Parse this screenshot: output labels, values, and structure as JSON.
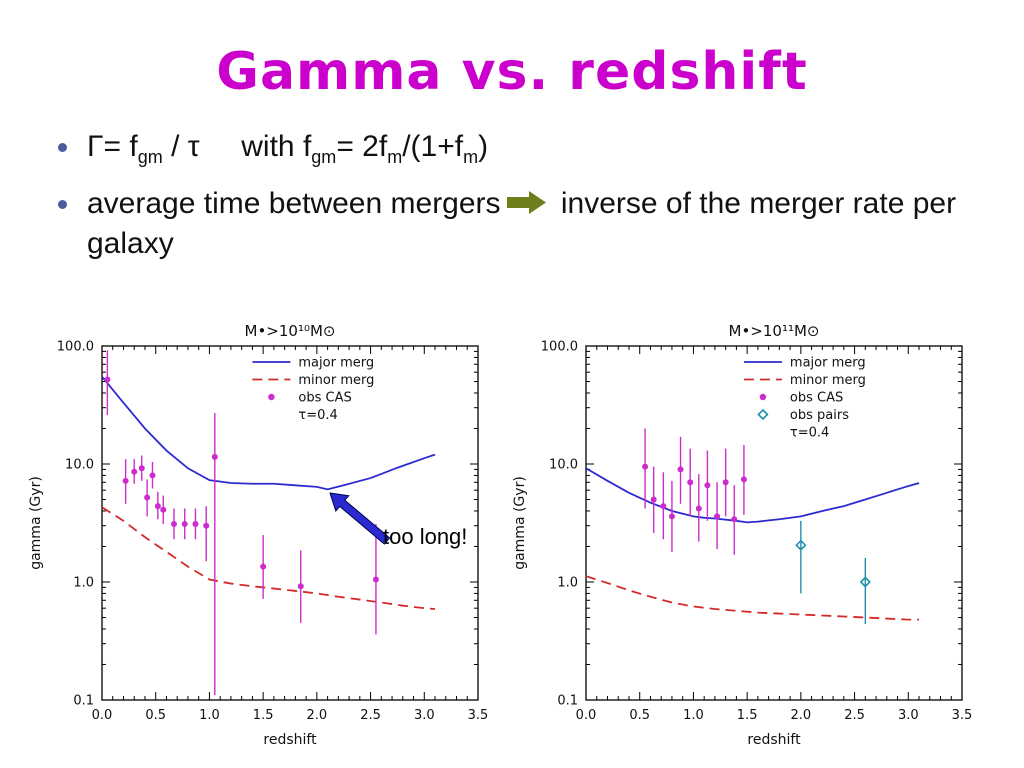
{
  "slide": {
    "title": "Gamma vs. redshift",
    "title_color": "#cc00cc",
    "bullets": {
      "b1": {
        "runs": [
          "Γ= f",
          "gm",
          " / τ     with f",
          "gm",
          "= 2f",
          "m",
          "/(1+f",
          "m",
          ")"
        ]
      },
      "b2": {
        "pre": "average time between mergers",
        "post": " inverse of the merger rate per galaxy",
        "arrow_icon": "right-arrow",
        "arrow_color": "#6d7f1c"
      }
    },
    "annotation": {
      "label": "too long!",
      "arrow_icon": "up-left-arrow",
      "arrow_color": "#2a2ad0"
    }
  },
  "chart_data": [
    {
      "type": "line",
      "title": "M•>10¹⁰M⊙",
      "xlabel": "redshift",
      "ylabel": "gamma (Gyr)",
      "xlim": [
        0,
        3.5
      ],
      "ylim": [
        0.1,
        100
      ],
      "yscale": "log",
      "grid": false,
      "legend_position": "top-right-inside",
      "legend_x": 0.4,
      "xticks": {
        "values": [
          0,
          0.5,
          1,
          1.5,
          2,
          2.5,
          3,
          3.5
        ],
        "labels": [
          "0.0",
          "0.5",
          "1.0",
          "1.5",
          "2.0",
          "2.5",
          "3.0",
          "3.5"
        ]
      },
      "yticks": {
        "values": [
          0.1,
          1,
          10,
          100
        ],
        "labels": [
          "0.1",
          "1.0",
          "10.0",
          "100.0"
        ]
      },
      "series": [
        {
          "name": "major merg",
          "type": "line",
          "color": "#2b2bd0",
          "dash": "",
          "points": [
            [
              0,
              55
            ],
            [
              0.2,
              33
            ],
            [
              0.4,
              20
            ],
            [
              0.6,
              13
            ],
            [
              0.8,
              9.2
            ],
            [
              1.0,
              7.3
            ],
            [
              1.2,
              6.9
            ],
            [
              1.4,
              6.8
            ],
            [
              1.6,
              6.8
            ],
            [
              1.8,
              6.6
            ],
            [
              2.0,
              6.4
            ],
            [
              2.1,
              6.1
            ],
            [
              2.25,
              6.6
            ],
            [
              2.5,
              7.6
            ],
            [
              2.75,
              9.3
            ],
            [
              3.0,
              11.2
            ],
            [
              3.1,
              12
            ]
          ]
        },
        {
          "name": "minor merg",
          "type": "line",
          "color": "#d42a2a",
          "dash": "10 6",
          "points": [
            [
              0,
              4.3
            ],
            [
              0.2,
              3.3
            ],
            [
              0.4,
              2.4
            ],
            [
              0.6,
              1.8
            ],
            [
              0.8,
              1.35
            ],
            [
              1.0,
              1.05
            ],
            [
              1.2,
              0.97
            ],
            [
              1.4,
              0.92
            ],
            [
              1.6,
              0.88
            ],
            [
              1.8,
              0.84
            ],
            [
              2.0,
              0.8
            ],
            [
              2.2,
              0.75
            ],
            [
              2.4,
              0.71
            ],
            [
              2.6,
              0.67
            ],
            [
              2.8,
              0.63
            ],
            [
              3.0,
              0.6
            ],
            [
              3.1,
              0.59
            ]
          ]
        },
        {
          "name": "obs CAS",
          "type": "errorbar",
          "marker": "dot",
          "color": "#cc2ccc",
          "points": [
            [
              0.05,
              52,
              26,
              92
            ],
            [
              0.22,
              7.2,
              4.6,
              11
            ],
            [
              0.3,
              8.6,
              6.8,
              11
            ],
            [
              0.37,
              9.2,
              7.2,
              11.8
            ],
            [
              0.42,
              5.2,
              3.6,
              7.4
            ],
            [
              0.47,
              8.0,
              6.2,
              10.4
            ],
            [
              0.52,
              4.4,
              3.4,
              5.8
            ],
            [
              0.57,
              4.1,
              3.1,
              5.4
            ],
            [
              0.67,
              3.1,
              2.3,
              4.2
            ],
            [
              0.77,
              3.1,
              2.3,
              4.2
            ],
            [
              0.87,
              3.1,
              2.3,
              4.2
            ],
            [
              0.97,
              3.0,
              1.5,
              4.4
            ],
            [
              1.05,
              11.5,
              0.11,
              27
            ],
            [
              1.5,
              1.35,
              0.72,
              2.5
            ],
            [
              1.85,
              0.92,
              0.45,
              1.85
            ],
            [
              2.55,
              1.05,
              0.36,
              3.1
            ]
          ]
        }
      ],
      "legend": [
        {
          "label": "major merg",
          "swatch": "line",
          "color": "#2b2bd0"
        },
        {
          "label": "minor merg",
          "swatch": "dashed",
          "color": "#d42a2a"
        },
        {
          "label": "obs CAS",
          "swatch": "dot",
          "color": "#cc2ccc"
        },
        {
          "label": "τ=0.4",
          "swatch": "none",
          "color": "#222222"
        }
      ]
    },
    {
      "type": "line",
      "title": "M•>10¹¹M⊙",
      "xlabel": "redshift",
      "ylabel": "gamma (Gyr)",
      "xlim": [
        0,
        3.5
      ],
      "ylim": [
        0.1,
        100
      ],
      "yscale": "log",
      "grid": false,
      "legend_position": "top-right-inside",
      "legend_x": 0.42,
      "xticks": {
        "values": [
          0,
          0.5,
          1,
          1.5,
          2,
          2.5,
          3,
          3.5
        ],
        "labels": [
          "0.0",
          "0.5",
          "1.0",
          "1.5",
          "2.0",
          "2.5",
          "3.0",
          "3.5"
        ]
      },
      "yticks": {
        "values": [
          0.1,
          1,
          10,
          100
        ],
        "labels": [
          "0.1",
          "1.0",
          "10.0",
          "100.0"
        ]
      },
      "series": [
        {
          "name": "major merg",
          "type": "line",
          "color": "#2b2bd0",
          "dash": "",
          "points": [
            [
              0,
              9.2
            ],
            [
              0.2,
              7.2
            ],
            [
              0.4,
              5.7
            ],
            [
              0.6,
              4.7
            ],
            [
              0.8,
              4.0
            ],
            [
              1.0,
              3.6
            ],
            [
              1.1,
              3.5
            ],
            [
              1.2,
              3.45
            ],
            [
              1.4,
              3.3
            ],
            [
              1.5,
              3.2
            ],
            [
              1.6,
              3.25
            ],
            [
              1.8,
              3.4
            ],
            [
              2.0,
              3.6
            ],
            [
              2.2,
              4.0
            ],
            [
              2.4,
              4.4
            ],
            [
              2.6,
              5.0
            ],
            [
              2.8,
              5.7
            ],
            [
              3.0,
              6.5
            ],
            [
              3.1,
              6.9
            ]
          ]
        },
        {
          "name": "minor merg",
          "type": "line",
          "color": "#d42a2a",
          "dash": "10 6",
          "points": [
            [
              0,
              1.12
            ],
            [
              0.2,
              0.98
            ],
            [
              0.4,
              0.85
            ],
            [
              0.6,
              0.75
            ],
            [
              0.8,
              0.67
            ],
            [
              1.0,
              0.62
            ],
            [
              1.2,
              0.59
            ],
            [
              1.4,
              0.57
            ],
            [
              1.6,
              0.55
            ],
            [
              1.8,
              0.54
            ],
            [
              2.0,
              0.53
            ],
            [
              2.2,
              0.52
            ],
            [
              2.4,
              0.51
            ],
            [
              2.6,
              0.5
            ],
            [
              2.8,
              0.49
            ],
            [
              3.0,
              0.48
            ],
            [
              3.1,
              0.48
            ]
          ]
        },
        {
          "name": "obs CAS",
          "type": "errorbar",
          "marker": "dot",
          "color": "#cc2ccc",
          "points": [
            [
              0.55,
              9.5,
              4.2,
              20
            ],
            [
              0.63,
              5.0,
              2.6,
              9.5
            ],
            [
              0.72,
              4.4,
              2.3,
              8.5
            ],
            [
              0.8,
              3.6,
              1.8,
              7.2
            ],
            [
              0.88,
              9.0,
              4.6,
              17
            ],
            [
              0.97,
              7.0,
              3.6,
              13.5
            ],
            [
              1.05,
              4.2,
              2.2,
              8.2
            ],
            [
              1.13,
              6.6,
              3.3,
              13
            ],
            [
              1.22,
              3.6,
              1.9,
              7
            ],
            [
              1.3,
              7.0,
              3.6,
              13.5
            ],
            [
              1.38,
              3.4,
              1.7,
              6.6
            ],
            [
              1.47,
              7.4,
              3.7,
              14.5
            ]
          ]
        },
        {
          "name": "obs pairs",
          "type": "errorbar",
          "marker": "diamond",
          "color": "#2090ad",
          "points": [
            [
              2.0,
              2.05,
              0.8,
              3.3
            ],
            [
              2.6,
              1.0,
              0.44,
              1.6
            ]
          ]
        }
      ],
      "legend": [
        {
          "label": "major merg",
          "swatch": "line",
          "color": "#2b2bd0"
        },
        {
          "label": "minor merg",
          "swatch": "dashed",
          "color": "#d42a2a"
        },
        {
          "label": "obs CAS",
          "swatch": "dot",
          "color": "#cc2ccc"
        },
        {
          "label": "obs pairs",
          "swatch": "diamond",
          "color": "#2090ad"
        },
        {
          "label": "τ=0.4",
          "swatch": "none",
          "color": "#222222"
        }
      ]
    }
  ]
}
